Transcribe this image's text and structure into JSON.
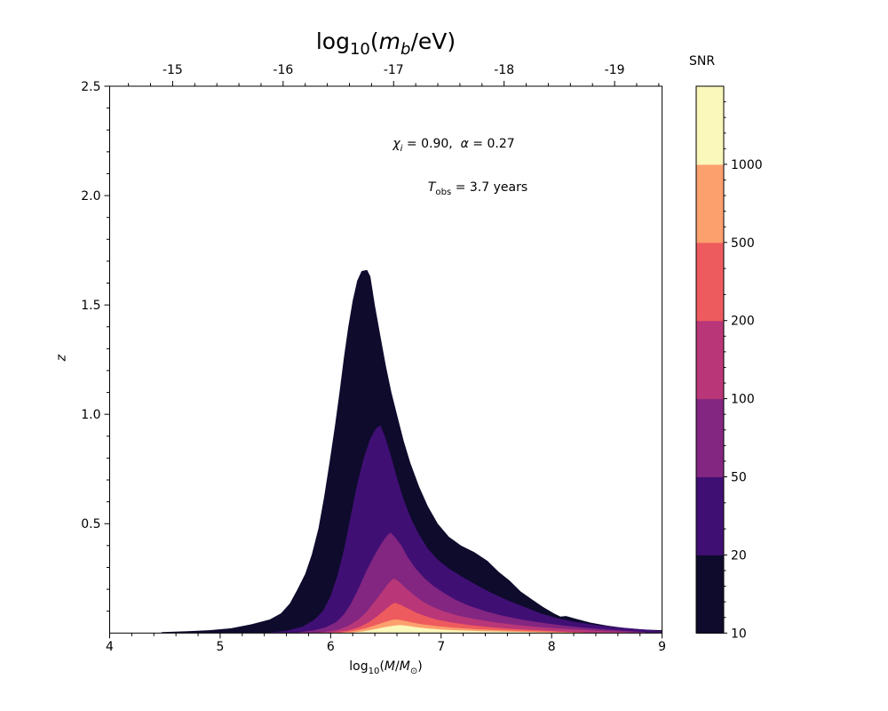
{
  "figure": {
    "background": "#ffffff",
    "top_title": {
      "text": "log10(mb/eV)",
      "parts": {
        "fn": "log",
        "fnsub": "10",
        "open": "(",
        "var": "m",
        "varsub": "b",
        "close": "/eV)"
      }
    },
    "xlabel": {
      "text": "log10(M/M⊙)",
      "parts": {
        "fn": "log",
        "fnsub": "10",
        "open": "(",
        "var1": "M",
        "slash": "/",
        "var2": "M",
        "sunsub": "⊙",
        "close": ")"
      }
    },
    "ylabel": "z",
    "annotation1": {
      "text": "χi = 0.90,  α = 0.27",
      "chi": "χ",
      "chisub": "i",
      "mid": " = 0.90,  ",
      "alpha": "α",
      "end": " = 0.27"
    },
    "annotation2": {
      "text": "Tobs = 3.7 years",
      "T": "T",
      "sub": "obs",
      "end": " = 3.7 years"
    },
    "colorbar_title": "SNR"
  },
  "chart_data": {
    "type": "contourf",
    "title": "log10(m_b/eV) (top axis)",
    "xlabel": "log10(M/M_sun)",
    "ylabel": "z",
    "xlim": [
      4,
      9
    ],
    "ylim": [
      0,
      2.5
    ],
    "grid": false,
    "x_ticks": {
      "values": [
        4,
        5,
        6,
        7,
        8,
        9
      ],
      "labels": [
        "4",
        "5",
        "6",
        "7",
        "8",
        "9"
      ],
      "minor_step": 0.2
    },
    "y_ticks": {
      "values": [
        0.5,
        1.0,
        1.5,
        2.0,
        2.5
      ],
      "labels": [
        "0.5",
        "1.0",
        "1.5",
        "2.0",
        "2.5"
      ],
      "minor_step": 0.1
    },
    "top_ticks": {
      "values": [
        -15,
        -16,
        -17,
        -18,
        -19
      ],
      "labels": [
        "-15",
        "-16",
        "-17",
        "-18",
        "-19"
      ],
      "map_offset": -10.43,
      "minor_step": 0.2
    },
    "snr_levels": [
      10,
      20,
      50,
      100,
      200,
      500,
      1000
    ],
    "colorbar": {
      "title": "SNR",
      "boundaries": [
        10,
        20,
        50,
        100,
        200,
        500,
        1000,
        2000
      ],
      "tick_labels": [
        "10",
        "20",
        "50",
        "100",
        "200",
        "500",
        "1000"
      ],
      "minor_ticks": [
        12,
        14,
        16,
        18,
        30,
        40,
        60,
        70,
        80,
        90,
        120,
        140,
        160,
        180,
        300,
        400,
        600,
        700,
        800,
        900,
        1200,
        1400,
        1600,
        1800
      ],
      "colors": [
        "#0e0b2d",
        "#400f74",
        "#832681",
        "#b93778",
        "#ee5b5e",
        "#fca06e",
        "#fbf8bb"
      ]
    },
    "contours": [
      {
        "level": 10,
        "color": "#0e0b2d",
        "points": [
          [
            4.47,
            0.004
          ],
          [
            4.7,
            0.008
          ],
          [
            4.9,
            0.013
          ],
          [
            5.1,
            0.022
          ],
          [
            5.28,
            0.04
          ],
          [
            5.45,
            0.062
          ],
          [
            5.55,
            0.09
          ],
          [
            5.63,
            0.135
          ],
          [
            5.7,
            0.2
          ],
          [
            5.77,
            0.27
          ],
          [
            5.83,
            0.36
          ],
          [
            5.89,
            0.48
          ],
          [
            5.94,
            0.62
          ],
          [
            5.99,
            0.78
          ],
          [
            6.04,
            0.95
          ],
          [
            6.08,
            1.1
          ],
          [
            6.12,
            1.26
          ],
          [
            6.16,
            1.4
          ],
          [
            6.2,
            1.52
          ],
          [
            6.24,
            1.61
          ],
          [
            6.28,
            1.655
          ],
          [
            6.33,
            1.66
          ],
          [
            6.36,
            1.63
          ],
          [
            6.4,
            1.5
          ],
          [
            6.45,
            1.36
          ],
          [
            6.5,
            1.22
          ],
          [
            6.55,
            1.1
          ],
          [
            6.6,
            1.0
          ],
          [
            6.66,
            0.88
          ],
          [
            6.72,
            0.78
          ],
          [
            6.8,
            0.67
          ],
          [
            6.88,
            0.58
          ],
          [
            6.97,
            0.5
          ],
          [
            7.07,
            0.44
          ],
          [
            7.18,
            0.4
          ],
          [
            7.3,
            0.37
          ],
          [
            7.42,
            0.33
          ],
          [
            7.52,
            0.28
          ],
          [
            7.62,
            0.24
          ],
          [
            7.72,
            0.19
          ],
          [
            7.82,
            0.155
          ],
          [
            7.92,
            0.12
          ],
          [
            8.02,
            0.09
          ],
          [
            8.08,
            0.075
          ],
          [
            8.13,
            0.078
          ],
          [
            8.22,
            0.065
          ],
          [
            8.35,
            0.048
          ],
          [
            8.5,
            0.034
          ],
          [
            8.65,
            0.024
          ],
          [
            8.8,
            0.017
          ],
          [
            9.0,
            0.013
          ]
        ]
      },
      {
        "level": 20,
        "color": "#400f74",
        "points": [
          [
            5.45,
            0.003
          ],
          [
            5.6,
            0.01
          ],
          [
            5.75,
            0.03
          ],
          [
            5.85,
            0.06
          ],
          [
            5.93,
            0.1
          ],
          [
            6.0,
            0.17
          ],
          [
            6.06,
            0.26
          ],
          [
            6.12,
            0.38
          ],
          [
            6.18,
            0.53
          ],
          [
            6.24,
            0.68
          ],
          [
            6.3,
            0.8
          ],
          [
            6.36,
            0.89
          ],
          [
            6.41,
            0.935
          ],
          [
            6.45,
            0.95
          ],
          [
            6.49,
            0.9
          ],
          [
            6.54,
            0.82
          ],
          [
            6.6,
            0.71
          ],
          [
            6.66,
            0.61
          ],
          [
            6.73,
            0.52
          ],
          [
            6.8,
            0.45
          ],
          [
            6.88,
            0.385
          ],
          [
            6.97,
            0.335
          ],
          [
            7.07,
            0.295
          ],
          [
            7.18,
            0.26
          ],
          [
            7.3,
            0.225
          ],
          [
            7.45,
            0.185
          ],
          [
            7.6,
            0.15
          ],
          [
            7.75,
            0.12
          ],
          [
            7.9,
            0.09
          ],
          [
            8.05,
            0.068
          ],
          [
            8.2,
            0.052
          ],
          [
            8.4,
            0.037
          ],
          [
            8.6,
            0.026
          ],
          [
            8.8,
            0.018
          ],
          [
            9.0,
            0.009
          ]
        ]
      },
      {
        "level": 50,
        "color": "#832681",
        "points": [
          [
            5.7,
            0.003
          ],
          [
            5.85,
            0.012
          ],
          [
            5.95,
            0.025
          ],
          [
            6.05,
            0.05
          ],
          [
            6.12,
            0.085
          ],
          [
            6.18,
            0.13
          ],
          [
            6.25,
            0.2
          ],
          [
            6.32,
            0.28
          ],
          [
            6.39,
            0.35
          ],
          [
            6.46,
            0.41
          ],
          [
            6.51,
            0.445
          ],
          [
            6.54,
            0.46
          ],
          [
            6.58,
            0.44
          ],
          [
            6.64,
            0.4
          ],
          [
            6.7,
            0.345
          ],
          [
            6.77,
            0.295
          ],
          [
            6.85,
            0.25
          ],
          [
            6.93,
            0.215
          ],
          [
            7.02,
            0.185
          ],
          [
            7.12,
            0.155
          ],
          [
            7.25,
            0.125
          ],
          [
            7.4,
            0.1
          ],
          [
            7.55,
            0.08
          ],
          [
            7.72,
            0.062
          ],
          [
            7.9,
            0.048
          ],
          [
            8.1,
            0.035
          ],
          [
            8.3,
            0.024
          ],
          [
            8.5,
            0.016
          ],
          [
            8.67,
            0.01
          ],
          [
            8.85,
            0.004
          ]
        ]
      },
      {
        "level": 100,
        "color": "#b93778",
        "points": [
          [
            5.9,
            0.003
          ],
          [
            6.05,
            0.012
          ],
          [
            6.15,
            0.03
          ],
          [
            6.25,
            0.06
          ],
          [
            6.33,
            0.1
          ],
          [
            6.4,
            0.145
          ],
          [
            6.47,
            0.19
          ],
          [
            6.52,
            0.225
          ],
          [
            6.57,
            0.25
          ],
          [
            6.62,
            0.235
          ],
          [
            6.68,
            0.205
          ],
          [
            6.75,
            0.175
          ],
          [
            6.83,
            0.145
          ],
          [
            6.92,
            0.12
          ],
          [
            7.02,
            0.1
          ],
          [
            7.15,
            0.08
          ],
          [
            7.3,
            0.064
          ],
          [
            7.5,
            0.048
          ],
          [
            7.7,
            0.036
          ],
          [
            7.9,
            0.027
          ],
          [
            8.15,
            0.018
          ],
          [
            8.4,
            0.011
          ],
          [
            8.6,
            0.006
          ],
          [
            8.72,
            0.003
          ]
        ]
      },
      {
        "level": 200,
        "color": "#ee5b5e",
        "points": [
          [
            6.0,
            0.003
          ],
          [
            6.15,
            0.01
          ],
          [
            6.25,
            0.025
          ],
          [
            6.35,
            0.05
          ],
          [
            6.43,
            0.08
          ],
          [
            6.5,
            0.11
          ],
          [
            6.55,
            0.13
          ],
          [
            6.58,
            0.138
          ],
          [
            6.63,
            0.13
          ],
          [
            6.7,
            0.112
          ],
          [
            6.78,
            0.092
          ],
          [
            6.87,
            0.075
          ],
          [
            6.97,
            0.06
          ],
          [
            7.1,
            0.048
          ],
          [
            7.25,
            0.037
          ],
          [
            7.45,
            0.027
          ],
          [
            7.65,
            0.019
          ],
          [
            7.9,
            0.012
          ],
          [
            8.1,
            0.007
          ],
          [
            8.3,
            0.003
          ]
        ]
      },
      {
        "level": 500,
        "color": "#fca06e",
        "points": [
          [
            6.1,
            0.002
          ],
          [
            6.22,
            0.01
          ],
          [
            6.32,
            0.022
          ],
          [
            6.42,
            0.038
          ],
          [
            6.5,
            0.052
          ],
          [
            6.56,
            0.06
          ],
          [
            6.6,
            0.062
          ],
          [
            6.66,
            0.057
          ],
          [
            6.74,
            0.048
          ],
          [
            6.83,
            0.04
          ],
          [
            6.95,
            0.032
          ],
          [
            7.1,
            0.025
          ],
          [
            7.3,
            0.018
          ],
          [
            7.55,
            0.012
          ],
          [
            7.8,
            0.008
          ],
          [
            8.0,
            0.006
          ],
          [
            8.2,
            0.003
          ]
        ]
      },
      {
        "level": 1000,
        "color": "#fbf8bb",
        "points": [
          [
            6.2,
            0.002
          ],
          [
            6.3,
            0.008
          ],
          [
            6.4,
            0.018
          ],
          [
            6.5,
            0.028
          ],
          [
            6.58,
            0.034
          ],
          [
            6.63,
            0.037
          ],
          [
            6.7,
            0.033
          ],
          [
            6.78,
            0.027
          ],
          [
            6.88,
            0.021
          ],
          [
            7.0,
            0.016
          ],
          [
            7.15,
            0.012
          ],
          [
            7.35,
            0.009
          ],
          [
            7.6,
            0.006
          ],
          [
            7.8,
            0.0045
          ],
          [
            8.0,
            0.002
          ]
        ]
      }
    ]
  }
}
